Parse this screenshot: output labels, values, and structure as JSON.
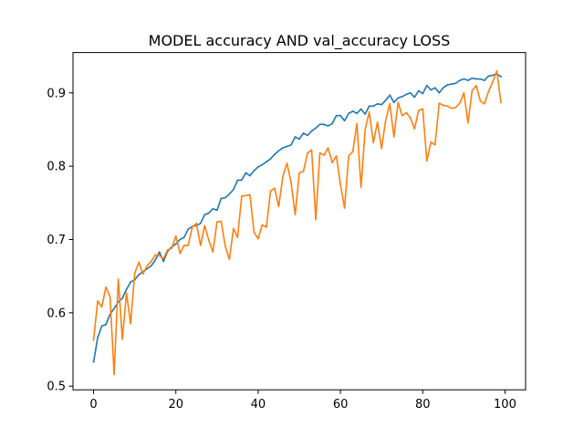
{
  "chart_data": {
    "type": "line",
    "title": "MODEL accuracy AND val_accuracy LOSS",
    "xlabel": "",
    "ylabel": "",
    "xlim": [
      -5,
      105
    ],
    "ylim": [
      0.495,
      0.955
    ],
    "grid": false,
    "legend": "none",
    "x_ticks": [
      0,
      20,
      40,
      60,
      80,
      100
    ],
    "y_ticks": [
      0.5,
      0.6,
      0.7,
      0.8,
      0.9
    ],
    "x_tick_labels": [
      "0",
      "20",
      "40",
      "60",
      "80",
      "100"
    ],
    "y_tick_labels": [
      "0.5",
      "0.6",
      "0.7",
      "0.8",
      "0.9"
    ],
    "series": [
      {
        "color": "#1f77b4",
        "values": [
          0.533,
          0.566,
          0.582,
          0.584,
          0.598,
          0.606,
          0.615,
          0.62,
          0.632,
          0.642,
          0.645,
          0.652,
          0.656,
          0.66,
          0.664,
          0.672,
          0.683,
          0.67,
          0.684,
          0.69,
          0.694,
          0.7,
          0.703,
          0.714,
          0.718,
          0.719,
          0.722,
          0.734,
          0.736,
          0.742,
          0.74,
          0.756,
          0.757,
          0.762,
          0.768,
          0.781,
          0.781,
          0.791,
          0.787,
          0.794,
          0.799,
          0.802,
          0.806,
          0.81,
          0.816,
          0.821,
          0.825,
          0.827,
          0.829,
          0.84,
          0.837,
          0.845,
          0.842,
          0.848,
          0.852,
          0.857,
          0.857,
          0.855,
          0.858,
          0.869,
          0.869,
          0.862,
          0.872,
          0.875,
          0.872,
          0.878,
          0.871,
          0.882,
          0.882,
          0.885,
          0.884,
          0.89,
          0.897,
          0.887,
          0.893,
          0.895,
          0.898,
          0.9,
          0.894,
          0.903,
          0.899,
          0.91,
          0.904,
          0.907,
          0.9,
          0.907,
          0.911,
          0.912,
          0.913,
          0.917,
          0.919,
          0.917,
          0.92,
          0.919,
          0.919,
          0.917,
          0.923,
          0.924,
          0.926,
          0.922
        ]
      },
      {
        "color": "#ff7f0e",
        "values": [
          0.563,
          0.616,
          0.608,
          0.635,
          0.622,
          0.516,
          0.646,
          0.564,
          0.627,
          0.585,
          0.654,
          0.669,
          0.653,
          0.664,
          0.67,
          0.679,
          0.678,
          0.674,
          0.686,
          0.688,
          0.705,
          0.681,
          0.692,
          0.692,
          0.717,
          0.722,
          0.692,
          0.719,
          0.699,
          0.683,
          0.724,
          0.725,
          0.691,
          0.673,
          0.715,
          0.703,
          0.759,
          0.76,
          0.761,
          0.71,
          0.701,
          0.72,
          0.717,
          0.766,
          0.77,
          0.745,
          0.786,
          0.804,
          0.778,
          0.734,
          0.791,
          0.793,
          0.818,
          0.822,
          0.727,
          0.818,
          0.815,
          0.825,
          0.805,
          0.814,
          0.775,
          0.743,
          0.814,
          0.82,
          0.858,
          0.771,
          0.85,
          0.874,
          0.832,
          0.86,
          0.824,
          0.863,
          0.885,
          0.84,
          0.887,
          0.869,
          0.873,
          0.866,
          0.851,
          0.876,
          0.878,
          0.807,
          0.833,
          0.829,
          0.886,
          0.883,
          0.882,
          0.879,
          0.88,
          0.886,
          0.9,
          0.859,
          0.903,
          0.91,
          0.889,
          0.885,
          0.902,
          0.915,
          0.93,
          0.887
        ]
      }
    ]
  }
}
